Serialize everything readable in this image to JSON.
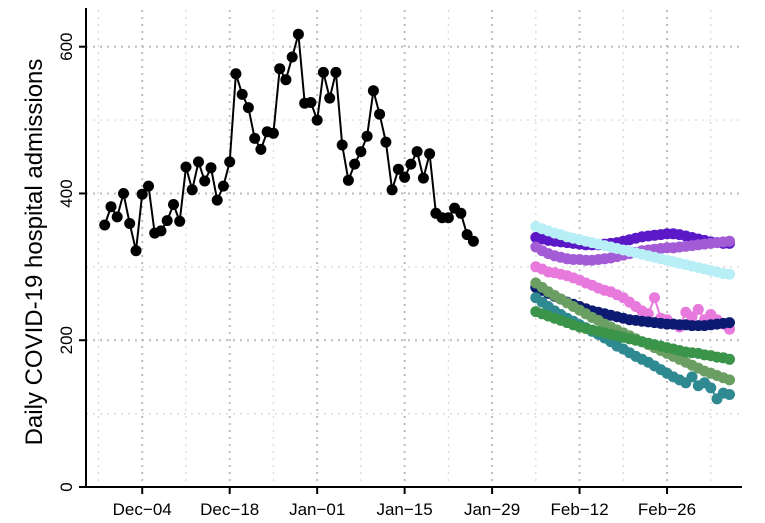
{
  "chart_data": {
    "type": "line",
    "title": "",
    "xlabel": "",
    "ylabel": "Daily COVID-19 hospital admissions",
    "ylim": [
      0,
      650
    ],
    "xlim": [
      "2021-11-25",
      "2022-03-10"
    ],
    "grid": true,
    "y_ticks": [
      0,
      200,
      400,
      600
    ],
    "x_ticks": [
      {
        "date": "2021-12-04",
        "label": "Dec−04"
      },
      {
        "date": "2021-12-18",
        "label": "Dec−18"
      },
      {
        "date": "2022-01-01",
        "label": "Jan−01"
      },
      {
        "date": "2022-01-15",
        "label": "Jan−15"
      },
      {
        "date": "2022-01-29",
        "label": "Jan−29"
      },
      {
        "date": "2022-02-12",
        "label": "Feb−12"
      },
      {
        "date": "2022-02-26",
        "label": "Feb−26"
      }
    ],
    "observed": {
      "color": "#000000",
      "start": "2021-11-28",
      "values": [
        357,
        382,
        368,
        400,
        359,
        322,
        399,
        410,
        346,
        349,
        363,
        385,
        362,
        436,
        405,
        443,
        417,
        435,
        391,
        410,
        443,
        563,
        535,
        517,
        475,
        460,
        484,
        482,
        570,
        555,
        586,
        617,
        523,
        524,
        500,
        565,
        530,
        565,
        466,
        418,
        440,
        457,
        478,
        540,
        508,
        470,
        405,
        433,
        422,
        440,
        457,
        421,
        454,
        373,
        367,
        367,
        380,
        373,
        344,
        335
      ]
    },
    "series": [
      {
        "color": "#5a18c7",
        "start": "2022-02-05",
        "values": [
          340,
          338,
          336,
          335,
          334,
          333,
          332,
          331,
          330,
          330,
          330,
          331,
          332,
          333,
          335,
          337,
          339,
          341,
          342,
          343,
          344,
          345,
          345,
          344,
          342,
          340,
          338,
          336,
          334,
          333,
          332,
          332
        ]
      },
      {
        "color": "#a45cd6",
        "start": "2022-02-05",
        "values": [
          327,
          322,
          318,
          315,
          313,
          311,
          310,
          310,
          309,
          309,
          310,
          311,
          312,
          314,
          316,
          318,
          320,
          322,
          323,
          324,
          325,
          326,
          326,
          327,
          328,
          329,
          330,
          331,
          332,
          333,
          334,
          335
        ]
      },
      {
        "color": "#b8eef6",
        "start": "2022-02-05",
        "values": [
          355,
          352,
          349,
          346,
          344,
          341,
          339,
          337,
          335,
          333,
          331,
          329,
          327,
          325,
          323,
          321,
          319,
          317,
          315,
          313,
          311,
          309,
          307,
          305,
          303,
          301,
          299,
          297,
          295,
          293,
          291,
          290
        ]
      },
      {
        "color": "#e879dd",
        "start": "2022-02-05",
        "values": [
          300,
          297,
          293,
          292,
          290,
          288,
          285,
          282,
          278,
          275,
          271,
          268,
          266,
          262,
          258,
          252,
          246,
          240,
          236,
          258,
          230,
          228,
          222,
          218,
          238,
          232,
          242,
          228,
          235,
          228,
          222,
          215
        ]
      },
      {
        "color": "#0d1a72",
        "start": "2022-02-05",
        "values": [
          272,
          268,
          264,
          260,
          256,
          252,
          249,
          246,
          243,
          240,
          238,
          236,
          234,
          232,
          230,
          228,
          227,
          226,
          225,
          224,
          223,
          222,
          222,
          221,
          221,
          220,
          220,
          220,
          221,
          222,
          223,
          224
        ]
      },
      {
        "color": "#2e8a90",
        "start": "2022-02-05",
        "values": [
          258,
          252,
          246,
          240,
          235,
          230,
          226,
          221,
          217,
          212,
          208,
          203,
          198,
          192,
          188,
          183,
          178,
          174,
          170,
          165,
          160,
          155,
          150,
          146,
          142,
          150,
          138,
          142,
          135,
          120,
          128,
          126
        ]
      },
      {
        "color": "#6b9e62",
        "start": "2022-02-05",
        "values": [
          278,
          272,
          266,
          261,
          256,
          251,
          246,
          241,
          236,
          231,
          227,
          222,
          218,
          214,
          210,
          206,
          202,
          198,
          194,
          190,
          186,
          182,
          178,
          174,
          170,
          166,
          162,
          158,
          155,
          152,
          149,
          146
        ]
      },
      {
        "color": "#3a944a",
        "start": "2022-02-05",
        "values": [
          239,
          236,
          233,
          230,
          227,
          224,
          221,
          218,
          216,
          214,
          212,
          210,
          208,
          206,
          204,
          202,
          200,
          198,
          196,
          194,
          192,
          190,
          188,
          186,
          184,
          183,
          182,
          180,
          179,
          177,
          176,
          174
        ]
      }
    ]
  }
}
